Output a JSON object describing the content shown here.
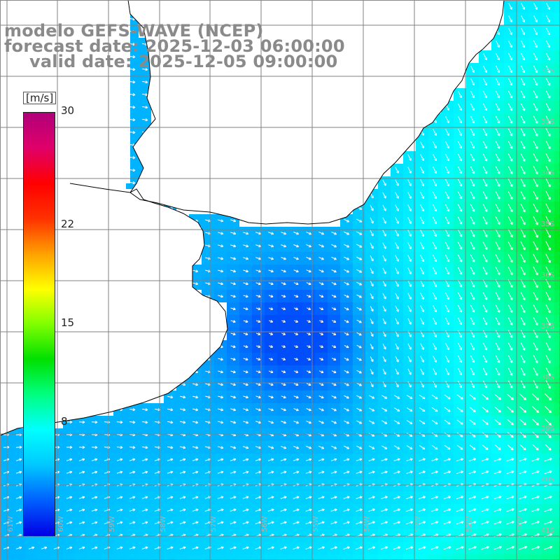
{
  "titles": {
    "model": "modelo GEFS-WAVE (NCEP)",
    "forecast": "forecast date: 2025-12-03 06:00:00",
    "valid": "valid date: 2025-12-05 09:00:00"
  },
  "colorbar": {
    "unit": "[m/s]",
    "ticks": [
      {
        "label": "30",
        "value": 30
      },
      {
        "label": "22",
        "value": 22
      },
      {
        "label": "15",
        "value": 15
      },
      {
        "label": "8",
        "value": 8
      }
    ],
    "min": 0,
    "max": 30,
    "colors": [
      "#0000e6",
      "#0060ff",
      "#00c8ff",
      "#00ffff",
      "#00ff80",
      "#00e000",
      "#80ff00",
      "#ffff00",
      "#ffa000",
      "#ff3000",
      "#ff0000",
      "#e0006a",
      "#b0007a"
    ]
  },
  "map": {
    "field": "10 m wind speed (m/s) with direction arrows",
    "lat_labels": [
      "32S",
      "33S",
      "34S",
      "35S",
      "36S",
      "37S",
      "38S",
      "39S",
      "40S",
      "41S"
    ],
    "lon_labels": [
      "61W",
      "60W",
      "59W",
      "58W",
      "57W",
      "56W",
      "55W",
      "54W",
      "53W",
      "52W",
      "51W"
    ],
    "land_color": "#ffffff",
    "grid_color": "#808080",
    "coast_color": "#000000"
  }
}
